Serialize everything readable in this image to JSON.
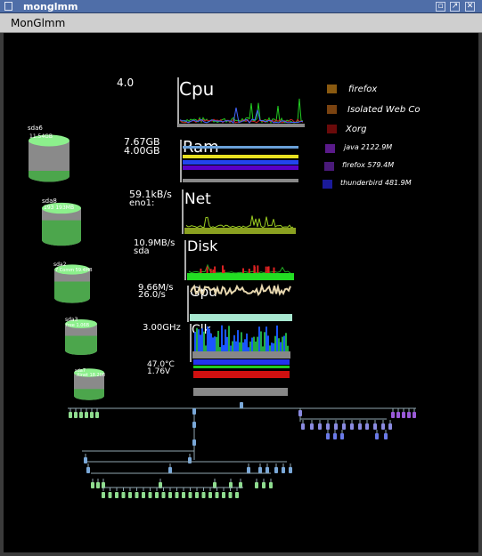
{
  "window": {
    "title": "monglmm",
    "menu_label": "MonGlmm"
  },
  "colors": {
    "titlebar": "#4f6ea8",
    "menubar": "#cfcfcf",
    "background": "#000000"
  },
  "icons": {
    "window_icon": "window-icon",
    "minimize": "minimize-icon",
    "maximize": "maximize-icon",
    "close": "close-icon"
  },
  "meters": {
    "cpu": {
      "label": "Cpu",
      "value": "4.0"
    },
    "ram": {
      "label": "Ram",
      "value1": "7.67GB",
      "value2": "4.00GB"
    },
    "net": {
      "label": "Net",
      "value1": "59.1kB/s",
      "value2": "eno1:"
    },
    "disk": {
      "label": "Disk",
      "value1": "10.9MB/s",
      "value2": "sda"
    },
    "gpu": {
      "label": "Gpu",
      "value1": "9.66M/s",
      "value2": "26.0/s"
    },
    "clk": {
      "label": "Clk",
      "value": "3.00GHz"
    },
    "temp": {
      "value1": "47.0°C",
      "value2": "1.76V"
    }
  },
  "disks": [
    {
      "label": "sda6",
      "sub": "11.54GB",
      "fill": 0.15
    },
    {
      "label": "sda8",
      "sub": "193 193MB",
      "fill": 0.62
    },
    {
      "label": "sda2",
      "sub": "7 Comm 59.4MB",
      "fill": 0.58
    },
    {
      "label": "sda3",
      "sub": "free 1.06B",
      "fill": 0.55
    },
    {
      "label": "sda7",
      "sub": "Xinet 18.208",
      "fill": 0.3
    }
  ],
  "processes": [
    {
      "name": "firefox",
      "color": "#8a5a10"
    },
    {
      "name": "Isolated Web Co",
      "color": "#7a4310"
    },
    {
      "name": "Xorg",
      "color": "#6a0a0a"
    },
    {
      "name": "java 2122.9M",
      "color": "#5a1a8a"
    },
    {
      "name": "firefox 579.4M",
      "color": "#4a1a7a"
    },
    {
      "name": "thunderbird 481.9M",
      "color": "#1a1a9a"
    }
  ]
}
